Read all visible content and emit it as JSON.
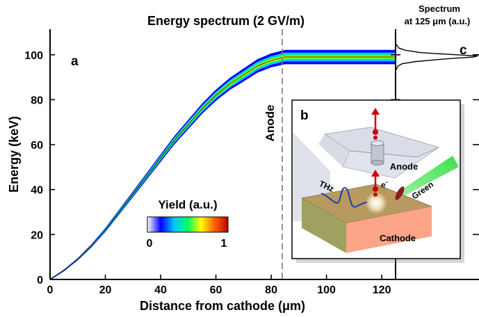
{
  "chart_data": [
    {
      "panel": "a",
      "type": "area",
      "title": "Energy spectrum (2 GV/m)",
      "xlabel": "Distance from cathode (μm)",
      "ylabel": "Energy (keV)",
      "xlim": [
        0,
        125
      ],
      "ylim": [
        0,
        112
      ],
      "xticks": [
        0,
        20,
        40,
        60,
        80,
        100,
        120
      ],
      "yticks": [
        0,
        20,
        40,
        60,
        80,
        100
      ],
      "x": [
        0,
        5,
        10,
        15,
        20,
        25,
        30,
        35,
        40,
        45,
        50,
        55,
        60,
        65,
        70,
        75,
        80,
        85,
        90,
        95,
        100,
        105,
        110,
        115,
        120,
        125
      ],
      "series": [
        {
          "values": [
            0,
            4,
            9,
            15,
            22,
            30,
            38,
            46,
            54,
            62,
            69,
            76,
            82,
            87,
            91,
            95,
            97.5,
            99,
            99,
            99,
            99,
            99,
            99,
            99,
            99,
            99
          ],
          "spread": [
            0.3,
            0.4,
            0.5,
            0.7,
            0.9,
            1.1,
            1.3,
            1.5,
            1.7,
            1.9,
            2.1,
            2.3,
            2.5,
            2.7,
            2.9,
            3.0,
            3.1,
            3.2,
            3.2,
            3.2,
            3.2,
            3.2,
            3.2,
            3.2,
            3.2,
            3.2
          ]
        }
      ],
      "annotations": [
        {
          "text": "Anode",
          "x": 84
        }
      ],
      "colorbar": {
        "label": "Yield (a.u.)",
        "min_label": "0",
        "max_label": "1",
        "colors": [
          "#ffffff",
          "#0000ff",
          "#00c8ff",
          "#00ff60",
          "#ffff00",
          "#ff6000",
          "#c00000"
        ]
      }
    },
    {
      "panel": "c",
      "type": "line",
      "title": "Spectrum at 125 μm (a.u.)",
      "title_lines": [
        "Spectrum",
        "at 125 μm (a.u.)"
      ],
      "ylim": [
        0,
        112
      ],
      "series": [
        {
          "energy": [
            93,
            95,
            96,
            97,
            97.5,
            98,
            98.5,
            99,
            99.5,
            100,
            100.5,
            101,
            102,
            103,
            105
          ],
          "intensity": [
            0,
            0.03,
            0.08,
            0.25,
            0.4,
            0.55,
            0.75,
            0.95,
            1.0,
            0.75,
            0.5,
            0.3,
            0.12,
            0.04,
            0
          ]
        }
      ]
    }
  ],
  "panel_labels": {
    "a": "a",
    "b": "b",
    "c": "c"
  },
  "inset_b": {
    "labels": {
      "anode": "Anode",
      "cathode": "Cathode",
      "thz": "THz",
      "electron": "e",
      "electron_sup": "-",
      "green": "Green"
    },
    "colors": {
      "cathode_top": "#b89a60",
      "cathode_front": "#fca487",
      "cathode_side": "#a0a060",
      "anode": "#d6dae6",
      "beam": "#72f27a",
      "arrow": "#d40000",
      "thz_wave": "#1f3fa8"
    }
  },
  "colors": {
    "anode_line": "#777777",
    "axis": "#000000"
  }
}
